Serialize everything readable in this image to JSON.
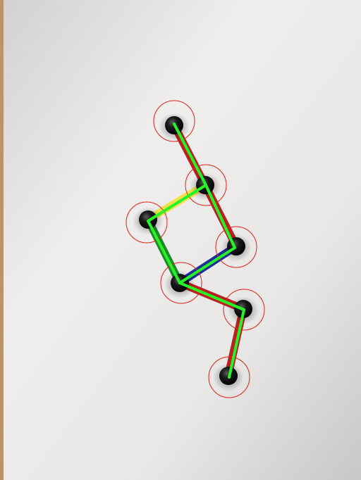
{
  "scene": {
    "description_name": "molecule-model-photo",
    "colors": {
      "paper_light": "#f1f0ef",
      "paper_mid": "#e6e5e4",
      "paper_dark": "#cfcdcc",
      "edge_strip": "#c9a77c",
      "atom": "#151515",
      "atom_highlight": "#6b6b6b",
      "bond_red": "#b8211f",
      "bond_yellow": "#f2e04a",
      "bond_blue": "#1f2f9a",
      "bond_green_dark": "#1d8a2a",
      "detection_circle": "#e0201c",
      "skeleton_line": "#27f227"
    },
    "atoms": [
      {
        "name": "atom-1"
      },
      {
        "name": "atom-2"
      },
      {
        "name": "atom-3"
      },
      {
        "name": "atom-4"
      },
      {
        "name": "atom-5"
      },
      {
        "name": "atom-6"
      },
      {
        "name": "atom-7"
      }
    ],
    "bonds": [
      {
        "from": 1,
        "to": 2,
        "color": "red"
      },
      {
        "from": 2,
        "to": 3,
        "color": "yellow"
      },
      {
        "from": 2,
        "to": 4,
        "color": "red"
      },
      {
        "from": 3,
        "to": 5,
        "color": "green"
      },
      {
        "from": 4,
        "to": 5,
        "color": "blue"
      },
      {
        "from": 5,
        "to": 6,
        "color": "red"
      },
      {
        "from": 6,
        "to": 7,
        "color": "red"
      }
    ]
  }
}
